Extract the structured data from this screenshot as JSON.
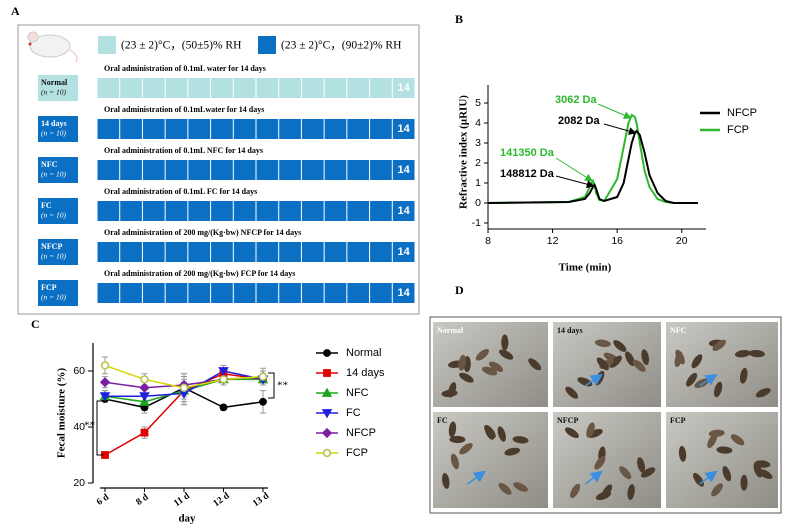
{
  "design": {
    "panel": "A",
    "legend": [
      {
        "text": "(23 ± 2)°C，(50±5)% RH",
        "color": "#b3e0e0"
      },
      {
        "text": "(23 ± 2)°C，(90±2)% RH",
        "color": "#0b6fc3"
      }
    ],
    "groups": [
      {
        "name": "Normal",
        "n": "(n = 10)",
        "description": "Oral administration of 0.1mL water for 14 days",
        "days": "14",
        "color": "#b3e0e0",
        "text_color": "#111111"
      },
      {
        "name": "14 days",
        "n": "(n = 10)",
        "description": "Oral administration of 0.1mLwater for 14 days",
        "days": "14",
        "color": "#0b6fc3",
        "text_color": "#ffffff"
      },
      {
        "name": "NFC",
        "n": "(n = 10)",
        "description": "Oral administration of 0.1mL NFC for 14 days",
        "days": "14",
        "color": "#0b6fc3",
        "text_color": "#ffffff"
      },
      {
        "name": "FC",
        "n": "(n = 10)",
        "description": "Oral administration of 0.1mL FC for 14 days",
        "days": "14",
        "color": "#0b6fc3",
        "text_color": "#ffffff"
      },
      {
        "name": "NFCP",
        "n": "(n = 10)",
        "description": "Oral administration of 200 mg/(Kg·bw) NFCP for 14 days",
        "days": "14",
        "color": "#0b6fc3",
        "text_color": "#ffffff"
      },
      {
        "name": "FCP",
        "n": "(n = 10)",
        "description": "Oral administration of 200 mg/(Kg·bw) FCP for 14 days",
        "days": "14",
        "color": "#0b6fc3",
        "text_color": "#ffffff"
      }
    ]
  },
  "chart_data": [
    {
      "type": "line",
      "panel": "B",
      "xlabel": "Time (min)",
      "ylabel": "Refractive index (µRIU)",
      "x": [
        8,
        13,
        14,
        14.3,
        14.5,
        14.6,
        14.7,
        14.9,
        15.2,
        16,
        16.4,
        16.7,
        16.9,
        17.1,
        17.2,
        17.4,
        17.7,
        18,
        18.5,
        19,
        19.5,
        21
      ],
      "series": [
        {
          "name": "NFCP",
          "color": "#000000",
          "values": [
            0,
            0.05,
            0.2,
            0.5,
            0.8,
            0.9,
            0.7,
            0.2,
            0.1,
            0.3,
            1.0,
            2.2,
            3.0,
            3.5,
            3.6,
            3.4,
            2.5,
            1.4,
            0.5,
            0.1,
            0,
            0
          ]
        },
        {
          "name": "FCP",
          "color": "#2db82d",
          "values": [
            0,
            0.05,
            0.3,
            0.8,
            1.1,
            0.9,
            0.5,
            0.15,
            0.1,
            1.2,
            2.8,
            4.0,
            4.4,
            4.3,
            4.0,
            3.0,
            1.6,
            0.8,
            0.2,
            0.05,
            0,
            0
          ]
        }
      ],
      "xlim": [
        8,
        21.5
      ],
      "ylim": [
        -1.3,
        5.9
      ],
      "xticks": [
        8,
        12,
        16,
        20
      ],
      "yticks": [
        -1,
        0,
        1,
        2,
        3,
        4,
        5
      ],
      "annotations": [
        {
          "text": "3062 Da",
          "color": "#2db82d"
        },
        {
          "text": "2082 Da",
          "color": "#000000"
        },
        {
          "text": "141350 Da",
          "color": "#2db82d"
        },
        {
          "text": "148812 Da",
          "color": "#000000"
        }
      ]
    },
    {
      "type": "line",
      "panel": "C",
      "xlabel": "day",
      "ylabel": "Fecal moisture (%)",
      "categories": [
        "6 d",
        "8 d",
        "11 d",
        "12 d",
        "13 d"
      ],
      "ylim": [
        20,
        70
      ],
      "yticks": [
        20,
        40,
        60
      ],
      "series": [
        {
          "name": "Normal",
          "color": "#000000",
          "marker": "circle",
          "values": [
            50,
            47,
            54,
            47,
            49
          ],
          "errors": [
            1,
            2,
            4,
            1,
            4
          ]
        },
        {
          "name": "14 days",
          "color": "#e00000",
          "marker": "square",
          "values": [
            30,
            38,
            53,
            59,
            57
          ],
          "errors": [
            1,
            2,
            5,
            2,
            2
          ]
        },
        {
          "name": "NFC",
          "color": "#1fa51f",
          "marker": "triangle-up",
          "values": [
            51,
            49,
            53,
            57,
            57
          ],
          "errors": [
            2,
            3,
            4,
            2,
            2
          ]
        },
        {
          "name": "FC",
          "color": "#1f1fe0",
          "marker": "triangle-down",
          "values": [
            51,
            51,
            52,
            60,
            57
          ],
          "errors": [
            2,
            3,
            4,
            2,
            2
          ]
        },
        {
          "name": "NFCP",
          "color": "#7a1fa0",
          "marker": "diamond",
          "values": [
            56,
            54,
            55,
            57,
            58
          ],
          "errors": [
            2,
            3,
            4,
            2,
            2
          ]
        },
        {
          "name": "FCP",
          "color": "#d6d600",
          "marker": "circle-open",
          "values": [
            62,
            57,
            54,
            57,
            58
          ],
          "errors": [
            3,
            2,
            5,
            2,
            3
          ]
        }
      ],
      "annotations": [
        "**",
        "**"
      ]
    }
  ],
  "photos": {
    "panel": "D",
    "labels": [
      "Normal",
      "14 days",
      "NFC",
      "FC",
      "NFCP",
      "FCP"
    ]
  }
}
